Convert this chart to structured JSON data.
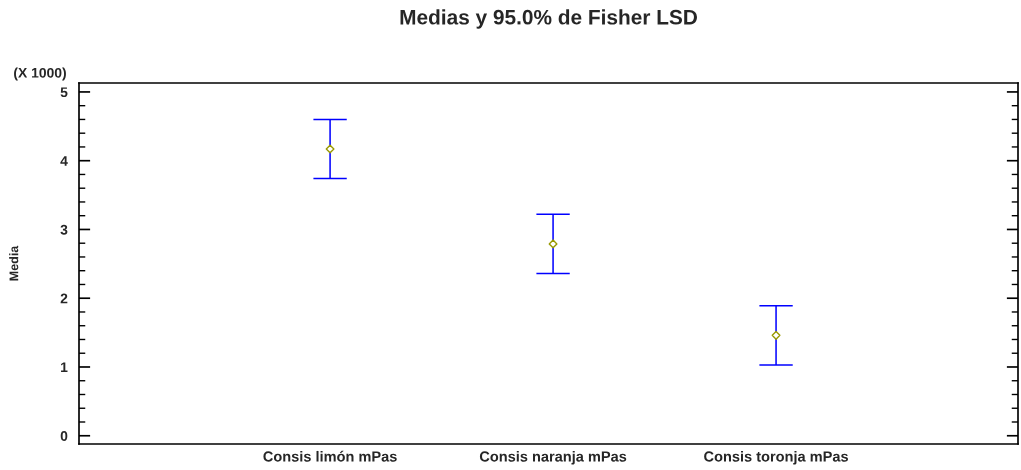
{
  "chart_data": {
    "type": "scatter",
    "title": "Medias y 95.0% de Fisher LSD",
    "ylabel": "Media",
    "annotations": [
      "(X 1000)"
    ],
    "categories": [
      "Consis limón mPas",
      "Consis naranja mPas",
      "Consis toronja mPas"
    ],
    "series": [
      {
        "color": "#999900",
        "values": [
          4.17,
          2.79,
          1.46
        ],
        "errors": [
          0.43,
          0.43,
          0.43
        ]
      }
    ],
    "ylim": [
      -0.12,
      5.13
    ],
    "yticks": [
      0,
      {
        "value": 0.2,
        "label": null
      },
      {
        "value": 0.4,
        "label": null
      },
      {
        "value": 0.6,
        "label": null
      },
      {
        "value": 0.8,
        "label": null
      },
      1,
      {
        "value": 1.2,
        "label": null
      },
      {
        "value": 1.4,
        "label": null
      },
      {
        "value": 1.6,
        "label": null
      },
      {
        "value": 1.8,
        "label": null
      },
      2,
      {
        "value": 2.2,
        "label": null
      },
      {
        "value": 2.4,
        "label": null
      },
      {
        "value": 2.6,
        "label": null
      },
      {
        "value": 2.8,
        "label": null
      },
      3,
      {
        "value": 3.2,
        "label": null
      },
      {
        "value": 3.4,
        "label": null
      },
      {
        "value": 3.6,
        "label": null
      },
      {
        "value": 3.8,
        "label": null
      },
      4,
      {
        "value": 4.2,
        "label": null
      },
      {
        "value": 4.4,
        "label": null
      },
      {
        "value": 4.6,
        "label": null
      },
      {
        "value": 4.8,
        "label": null
      },
      5
    ],
    "marker": "diamond"
  }
}
